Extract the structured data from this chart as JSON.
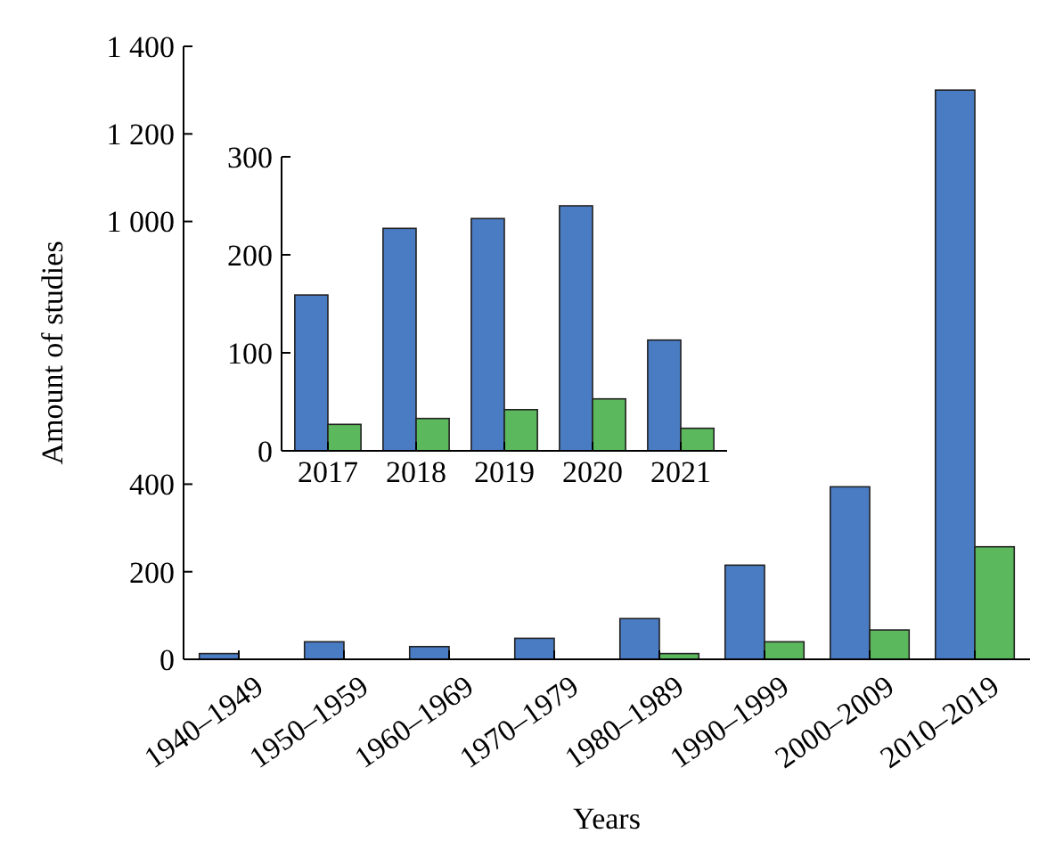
{
  "chart_data": [
    {
      "type": "bar",
      "xlabel": "Years",
      "ylabel": "Amount of studies",
      "categories": [
        "1940–1949",
        "1950–1959",
        "1960–1969",
        "1970–1979",
        "1980–1989",
        "1990–1999",
        "2000–2009",
        "2010–2019"
      ],
      "series": [
        {
          "color": "#4a7cc4",
          "values": [
            13,
            40,
            29,
            48,
            93,
            215,
            394,
            1300
          ]
        },
        {
          "color": "#5cb85c",
          "values": [
            null,
            null,
            null,
            null,
            13,
            40,
            67,
            257
          ]
        }
      ],
      "ylim": [
        0,
        1400
      ],
      "yticks": [
        0,
        200,
        400,
        {
          "value": 1000,
          "label": "1 000"
        },
        {
          "value": 1200,
          "label": "1 200"
        },
        {
          "value": 1400,
          "label": "1 400"
        }
      ]
    },
    {
      "type": "bar",
      "categories": [
        "2017",
        "2018",
        "2019",
        "2020",
        "2021"
      ],
      "series": [
        {
          "color": "#4a7cc4",
          "values": [
            159,
            227,
            237,
            250,
            113
          ]
        },
        {
          "color": "#5cb85c",
          "values": [
            27,
            33,
            42,
            53,
            23
          ]
        }
      ],
      "ylim": [
        0,
        300
      ],
      "yticks": [
        0,
        100,
        200,
        300
      ]
    }
  ]
}
